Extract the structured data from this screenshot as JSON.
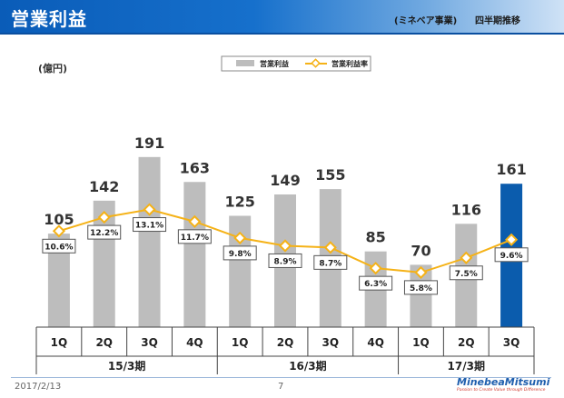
{
  "header": {
    "title": "営業利益",
    "segment": "(ミネベア事業)",
    "view": "四半期推移"
  },
  "footer": {
    "date": "2017/2/13",
    "page": "7"
  },
  "logo": {
    "name": "MinebeaMitsumi",
    "tagline": "Passion to Create Value through Difference"
  },
  "colors": {
    "bar": "#bdbdbd",
    "highlight_bar": "#0b5cad",
    "line": "#f5b217",
    "header": "#0a5cb8"
  },
  "chart_data": {
    "type": "bar",
    "unit_label": "(億円)",
    "categories": [
      "1Q",
      "2Q",
      "3Q",
      "4Q",
      "1Q",
      "2Q",
      "3Q",
      "4Q",
      "1Q",
      "2Q",
      "3Q"
    ],
    "groups": [
      {
        "label": "15/3期",
        "count": 4
      },
      {
        "label": "16/3期",
        "count": 4
      },
      {
        "label": "17/3期",
        "count": 3
      }
    ],
    "series": [
      {
        "name": "営業利益",
        "type": "bar",
        "values": [
          105,
          142,
          191,
          163,
          125,
          149,
          155,
          85,
          70,
          116,
          161
        ],
        "highlight_index": 10
      },
      {
        "name": "営業利益率",
        "type": "line",
        "values": [
          10.6,
          12.2,
          13.1,
          11.7,
          9.8,
          8.9,
          8.7,
          6.3,
          5.8,
          7.5,
          9.6
        ],
        "label_suffix": "%"
      }
    ],
    "ylim": [
      0,
      200
    ],
    "line_ylim": [
      0,
      17.5
    ],
    "legend": "top-center"
  }
}
